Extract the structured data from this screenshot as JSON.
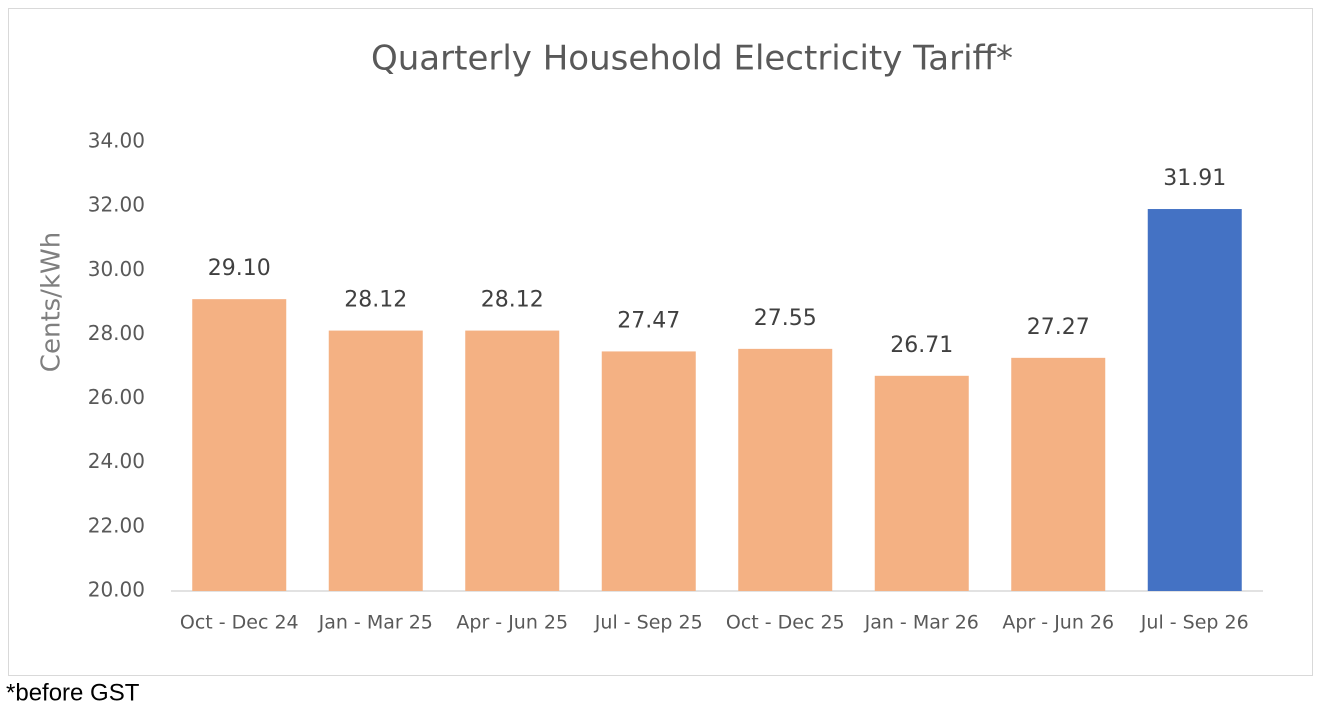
{
  "chart_data": {
    "type": "bar",
    "title": "Quarterly Household Electricity Tariff*",
    "y_label": "Cents/kWh",
    "footnote": "*before GST",
    "categories": [
      "Oct - Dec 24",
      "Jan - Mar 25",
      "Apr - Jun 25",
      "Jul - Sep 25",
      "Oct - Dec 25",
      "Jan - Mar 26",
      "Apr - Jun 26",
      "Jul - Sep 26"
    ],
    "values": [
      29.1,
      28.12,
      28.12,
      27.47,
      27.55,
      26.71,
      27.27,
      31.91
    ],
    "value_labels": [
      "29.10",
      "28.12",
      "28.12",
      "27.47",
      "27.55",
      "26.71",
      "27.27",
      "31.91"
    ],
    "colors": [
      "#f4b183",
      "#f4b183",
      "#f4b183",
      "#f4b183",
      "#f4b183",
      "#f4b183",
      "#f4b183",
      "#4472c4"
    ],
    "ylim": [
      20,
      34
    ],
    "yticks": [
      {
        "value": 20,
        "label": "20.00"
      },
      {
        "value": 22,
        "label": "22.00"
      },
      {
        "value": 24,
        "label": "24.00"
      },
      {
        "value": 26,
        "label": "26.00"
      },
      {
        "value": 28,
        "label": "28.00"
      },
      {
        "value": 30,
        "label": "30.00"
      },
      {
        "value": 32,
        "label": "32.00"
      },
      {
        "value": 34,
        "label": "34.00"
      }
    ],
    "grid": false
  }
}
